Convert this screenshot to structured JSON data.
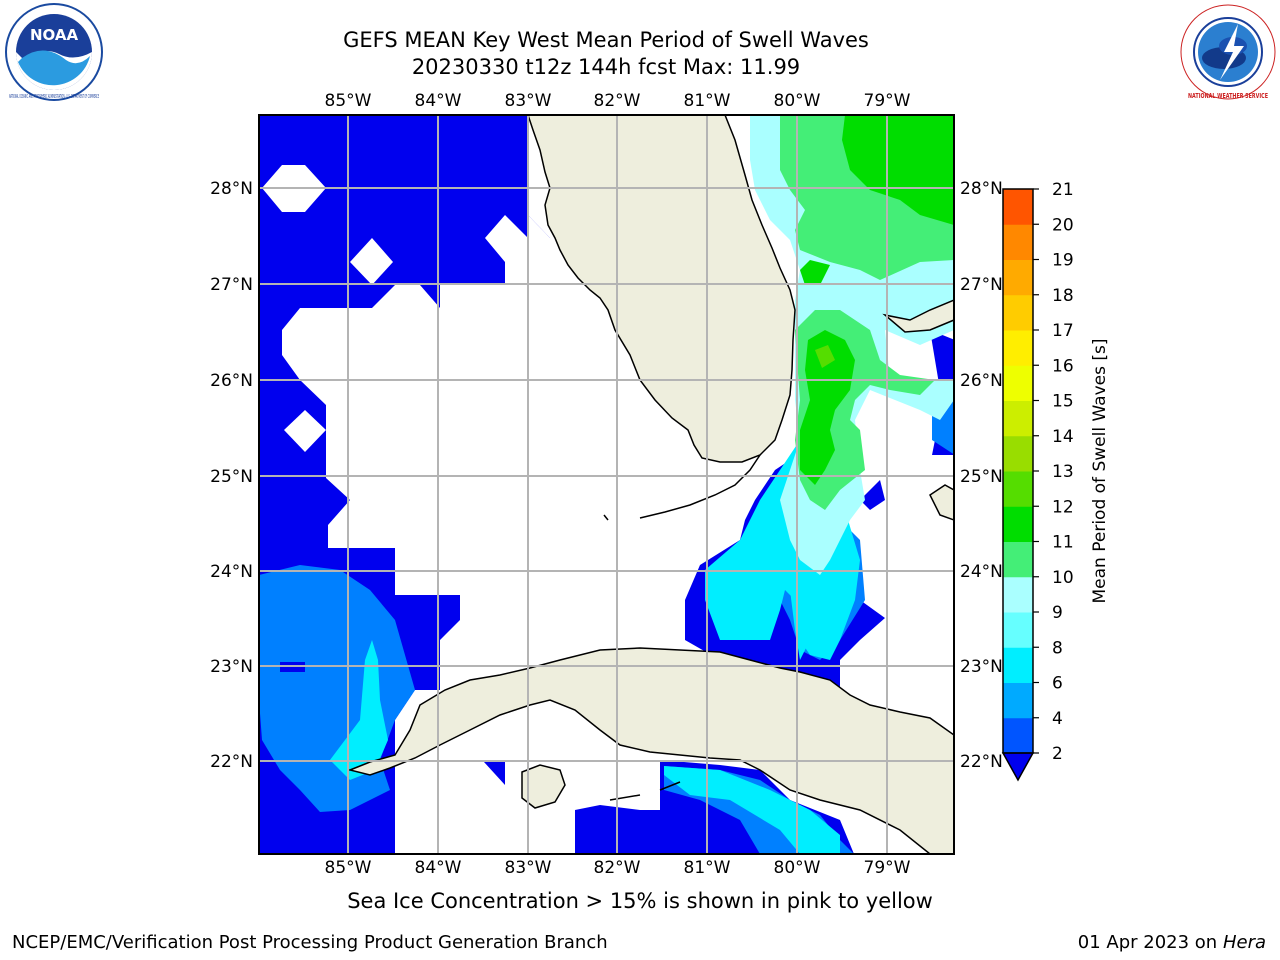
{
  "header": {
    "title_line1": "GEFS MEAN Key West Mean Period of Swell Waves",
    "title_line2": "20230330 t12z 144h fcst   Max: 11.99"
  },
  "logos": {
    "noaa": {
      "text": "NOAA",
      "ring_text": "NATIONAL OCEANIC AND ATMOSPHERIC ADMINISTRATION · U.S. DEPARTMENT OF COMMERCE"
    },
    "nws": {
      "ring_text": "NATIONAL WEATHER SERVICE"
    }
  },
  "map": {
    "lon_labels": [
      "85°W",
      "84°W",
      "83°W",
      "82°W",
      "81°W",
      "80°W",
      "79°W"
    ],
    "lat_labels": [
      "28°N",
      "27°N",
      "26°N",
      "25°N",
      "24°N",
      "23°N",
      "22°N"
    ],
    "land_color": "#eeeedd",
    "grid_color": "#b4b4b4"
  },
  "colorbar": {
    "label": "Mean Period of Swell Waves [s]",
    "ticks": [
      "2",
      "4",
      "6",
      "8",
      "9",
      "10",
      "11",
      "12",
      "13",
      "14",
      "15",
      "16",
      "17",
      "18",
      "19",
      "20",
      "21"
    ],
    "colors": [
      "#0055ff",
      "#00aaff",
      "#00eeff",
      "#66ffff",
      "#aaffff",
      "#44ee77",
      "#00dd00",
      "#55dd00",
      "#99dd00",
      "#ccee00",
      "#eeff00",
      "#ffee00",
      "#ffcc00",
      "#ffaa00",
      "#ff8800",
      "#ff5500",
      "#ff2200",
      "#ff0000"
    ],
    "extend_color": "#0000ee"
  },
  "footer": {
    "note": "Sea Ice Concentration > 15% is shown in pink to yellow",
    "credit": "NCEP/EMC/Verification Post Processing Product Generation Branch",
    "date": "01 Apr 2023 on",
    "host": "Hera"
  }
}
